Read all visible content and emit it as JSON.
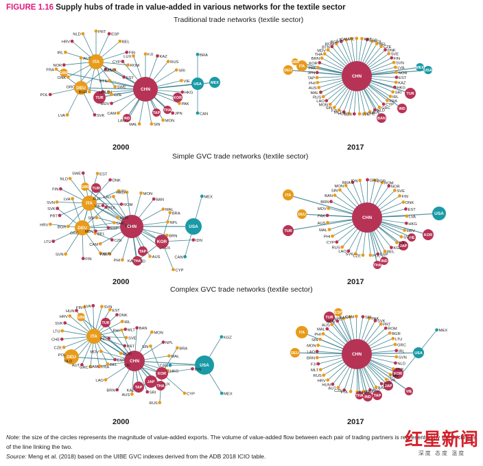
{
  "figure": {
    "number": "FIGURE 1.16",
    "title": "Supply hubs of trade in value-added in various networks for the textile sector"
  },
  "colors": {
    "edge": "#1f6f80",
    "asia": "#b73355",
    "europe": "#e89b1a",
    "americas": "#1a9aa6",
    "label": "#222222"
  },
  "sections": [
    {
      "title": "Traditional trade networks (textile sector)"
    },
    {
      "title": "Simple GVC trade networks (textile sector)"
    },
    {
      "title": "Complex GVC trade networks (textile sector)"
    }
  ],
  "years": [
    "2000",
    "2017"
  ],
  "panels": [
    {
      "hubs": [
        {
          "id": "ITA",
          "g": "europe",
          "r": 11,
          "leaves": [
            "PRT",
            "ESP",
            "BEL",
            "FIN",
            "ROM",
            "EST",
            "SWE",
            "LTU",
            "BGR",
            "GRC",
            "DNK",
            "NOR",
            "IRL",
            "HRV",
            "NLD"
          ]
        },
        {
          "id": "DEU",
          "g": "europe",
          "r": 10,
          "leaves": [
            "AUT",
            "HUN",
            "CZE",
            "SVK",
            "LVA",
            "POL",
            "FRA"
          ]
        },
        {
          "id": "CHN",
          "g": "asia",
          "r": 18,
          "leaves": [
            "FJI",
            "KAZ",
            "RUS",
            "SRI",
            "VIE",
            "HKG",
            "PAK",
            "JPN",
            "MON",
            "SIN",
            "MAL",
            "LAO",
            "CAM",
            "MDV",
            "NPL",
            "BTN",
            "BAN",
            "CYP",
            "LUX"
          ]
        },
        {
          "id": "USA",
          "g": "americas",
          "r": 9,
          "leaves": [
            "BRA",
            "CAN"
          ]
        },
        {
          "id": "MEX",
          "g": "americas",
          "r": 8,
          "leaves": []
        },
        {
          "id": "TUR",
          "g": "asia",
          "r": 9,
          "leaves": []
        },
        {
          "id": "KOR",
          "g": "asia",
          "r": 7,
          "leaves": []
        },
        {
          "id": "GBR",
          "g": "europe",
          "r": 6,
          "leaves": []
        },
        {
          "id": "IND",
          "g": "asia",
          "r": 6,
          "leaves": []
        },
        {
          "id": "TAP",
          "g": "asia",
          "r": 6,
          "leaves": []
        },
        {
          "id": "THA",
          "g": "asia",
          "r": 6,
          "leaves": []
        }
      ]
    },
    {
      "hubs": [
        {
          "id": "CHN",
          "g": "asia",
          "r": 22,
          "leaves": [
            "PRT",
            "ESP",
            "POL",
            "BEL",
            "CZE",
            "DNK",
            "SVE",
            "FIN",
            "SVN",
            "LVA",
            "NOR",
            "EST",
            "KAZ",
            "HKG",
            "SRI",
            "IRL",
            "FRA",
            "CYP",
            "GRC",
            "NLD",
            "AUT",
            "CHE",
            "SVK",
            "LUX",
            "HUN",
            "MLT",
            "FJI",
            "SIN",
            "MON",
            "LAO",
            "RUS",
            "MAL",
            "AUS",
            "PHI",
            "TAP",
            "JPN",
            "PAK",
            "KOR",
            "BRN",
            "THA",
            "MDV",
            "BTN",
            "ROM",
            "BGR",
            "LTU",
            "CAM",
            "VIE"
          ]
        },
        {
          "id": "USA",
          "g": "americas",
          "r": 6,
          "leaves": []
        },
        {
          "id": "MEX",
          "g": "americas",
          "r": 6,
          "leaves": []
        },
        {
          "id": "ITA",
          "g": "europe",
          "r": 8,
          "leaves": []
        },
        {
          "id": "DEU",
          "g": "europe",
          "r": 7,
          "leaves": []
        },
        {
          "id": "GBR",
          "g": "europe",
          "r": 5,
          "leaves": []
        },
        {
          "id": "TUR",
          "g": "asia",
          "r": 8,
          "leaves": []
        },
        {
          "id": "IND",
          "g": "asia",
          "r": 7,
          "leaves": []
        },
        {
          "id": "BAN",
          "g": "asia",
          "r": 7,
          "leaves": []
        }
      ]
    },
    {
      "hubs": [
        {
          "id": "ITA",
          "g": "europe",
          "r": 11,
          "leaves": [
            "EST",
            "DNK",
            "IRL",
            "ROM",
            "NOR",
            "ESP",
            "BEL",
            "GRC",
            "BGR",
            "PRT",
            "SVN",
            "FIN",
            "NLD",
            "SWE"
          ]
        },
        {
          "id": "DEU",
          "g": "europe",
          "r": 11,
          "leaves": [
            "AUT",
            "POL",
            "CHE",
            "CZE",
            "HUN",
            "FIN",
            "SVN",
            "LTU",
            "HRV",
            "SVK",
            "LVA"
          ]
        },
        {
          "id": "CHN",
          "g": "asia",
          "r": 17,
          "leaves": [
            "MON",
            "BAN",
            "MAL",
            "NPL",
            "BRN",
            "LUX",
            "AUS",
            "IND",
            "PHI",
            "PAK",
            "CAM",
            "MDV",
            "SRI",
            "VIE",
            "LAO",
            "HKG"
          ]
        },
        {
          "id": "KOR",
          "g": "asia",
          "r": 10,
          "leaves": [
            "BRA",
            "IDN",
            "CYP",
            "KAZ",
            "RUS"
          ]
        },
        {
          "id": "USA",
          "g": "americas",
          "r": 12,
          "leaves": [
            "MEX",
            "CAN"
          ]
        },
        {
          "id": "FRA",
          "g": "europe",
          "r": 6,
          "leaves": []
        },
        {
          "id": "GBR",
          "g": "europe",
          "r": 6,
          "leaves": []
        },
        {
          "id": "TUR",
          "g": "asia",
          "r": 7,
          "leaves": []
        },
        {
          "id": "JAP",
          "g": "asia",
          "r": 8,
          "leaves": []
        },
        {
          "id": "TAP",
          "g": "asia",
          "r": 7,
          "leaves": []
        },
        {
          "id": "THA",
          "g": "asia",
          "r": 7,
          "leaves": []
        }
      ]
    },
    {
      "hubs": [
        {
          "id": "CHN",
          "g": "asia",
          "r": 22,
          "leaves": [
            "ROM",
            "NOR",
            "SVE",
            "FIN",
            "DNK",
            "EST",
            "LVA",
            "HKG",
            "HRV",
            "SVN",
            "FJI",
            "KGZ",
            "BEL",
            "ESP",
            "POL",
            "CZE",
            "SVK",
            "LAO",
            "RUS",
            "CYP",
            "PHI",
            "MAL",
            "AUS",
            "PAK",
            "MDV",
            "BRN",
            "BAN",
            "SIN",
            "MON",
            "BRA",
            "IDN",
            "GRC",
            "BGR"
          ]
        },
        {
          "id": "USA",
          "g": "americas",
          "r": 10,
          "leaves": []
        },
        {
          "id": "ITA",
          "g": "europe",
          "r": 8,
          "leaves": []
        },
        {
          "id": "DEU",
          "g": "europe",
          "r": 7,
          "leaves": []
        },
        {
          "id": "TUR",
          "g": "asia",
          "r": 8,
          "leaves": []
        },
        {
          "id": "KOR",
          "g": "asia",
          "r": 8,
          "leaves": []
        },
        {
          "id": "JAP",
          "g": "asia",
          "r": 7,
          "leaves": []
        },
        {
          "id": "IND",
          "g": "asia",
          "r": 6,
          "leaves": []
        },
        {
          "id": "THA",
          "g": "asia",
          "r": 6,
          "leaves": []
        },
        {
          "id": "VIE",
          "g": "asia",
          "r": 6,
          "leaves": []
        }
      ]
    },
    {
      "hubs": [
        {
          "id": "ITA",
          "g": "europe",
          "r": 11,
          "leaves": [
            "EST",
            "DNK",
            "IRL",
            "MLT",
            "SVE",
            "PRT",
            "NOR",
            "ESP",
            "BEL",
            "FRA",
            "GRC",
            "AUT",
            "NLD",
            "POL",
            "CZE",
            "CHE",
            "LTU",
            "SVK",
            "HRV",
            "HUN",
            "FIN",
            "LVA",
            "SVN"
          ]
        },
        {
          "id": "DEU",
          "g": "europe",
          "r": 11,
          "leaves": []
        },
        {
          "id": "CHN",
          "g": "asia",
          "r": 15,
          "leaves": [
            "MON",
            "NPL",
            "MAL",
            "HKG",
            "LUX",
            "SRI",
            "AUS",
            "BRN",
            "LAO",
            "CAM",
            "MDV",
            "IND",
            "PHI",
            "BAN"
          ]
        },
        {
          "id": "KOR",
          "g": "asia",
          "r": 9,
          "leaves": [
            "BRA",
            "IDN",
            "CYP",
            "RUS",
            "KAZ",
            "VIE",
            "SIN"
          ]
        },
        {
          "id": "USA",
          "g": "americas",
          "r": 14,
          "leaves": [
            "KGZ",
            "MEX",
            "CAN"
          ]
        },
        {
          "id": "GBR",
          "g": "europe",
          "r": 6,
          "leaves": []
        },
        {
          "id": "TUR",
          "g": "asia",
          "r": 7,
          "leaves": []
        },
        {
          "id": "JAP",
          "g": "asia",
          "r": 9,
          "leaves": []
        },
        {
          "id": "TAP",
          "g": "asia",
          "r": 8,
          "leaves": []
        },
        {
          "id": "THA",
          "g": "asia",
          "r": 7,
          "leaves": []
        }
      ]
    },
    {
      "hubs": [
        {
          "id": "CHN",
          "g": "asia",
          "r": 22,
          "leaves": [
            "PRT",
            "ROM",
            "BGR",
            "LTU",
            "GRC",
            "IRL",
            "SVN",
            "NLD",
            "DNK",
            "FIN",
            "LVA",
            "EST",
            "KAZ",
            "KGZ",
            "FRA",
            "CHE",
            "POL",
            "CZE",
            "AUT",
            "HUN",
            "HRV",
            "RUS",
            "MLT",
            "FJI",
            "BRN",
            "LAO",
            "MON",
            "SIN",
            "PHI",
            "MAL",
            "AUS",
            "MDV",
            "NPL",
            "BAN",
            "CAM",
            "SRI",
            "PAK",
            "SVK"
          ]
        },
        {
          "id": "USA",
          "g": "americas",
          "r": 8,
          "leaves": [
            "MEX",
            "CAN"
          ]
        },
        {
          "id": "ITA",
          "g": "europe",
          "r": 9,
          "leaves": []
        },
        {
          "id": "DEU",
          "g": "europe",
          "r": 7,
          "leaves": []
        },
        {
          "id": "TUR",
          "g": "asia",
          "r": 8,
          "leaves": []
        },
        {
          "id": "KOR",
          "g": "asia",
          "r": 8,
          "leaves": []
        },
        {
          "id": "JAP",
          "g": "asia",
          "r": 7,
          "leaves": []
        },
        {
          "id": "TAP",
          "g": "asia",
          "r": 7,
          "leaves": []
        },
        {
          "id": "IND",
          "g": "asia",
          "r": 7,
          "leaves": []
        },
        {
          "id": "THA",
          "g": "asia",
          "r": 6,
          "leaves": []
        },
        {
          "id": "VIE",
          "g": "asia",
          "r": 6,
          "leaves": []
        },
        {
          "id": "ESP",
          "g": "europe",
          "r": 6,
          "leaves": []
        }
      ]
    }
  ],
  "note": {
    "label": "Note:",
    "text": "the size of the circles represents the magnitude of value-added exports. The volume of value-added flow between each pair of trading partners is represented by the thickness of the line linking the two."
  },
  "source": {
    "label": "Source:",
    "text": "Meng et al. (2018) based on the UIBE GVC indexes derived from the ADB 2018 ICIO table."
  },
  "watermark": {
    "main": "红星新闻",
    "sub": "深度 态度 温度"
  }
}
